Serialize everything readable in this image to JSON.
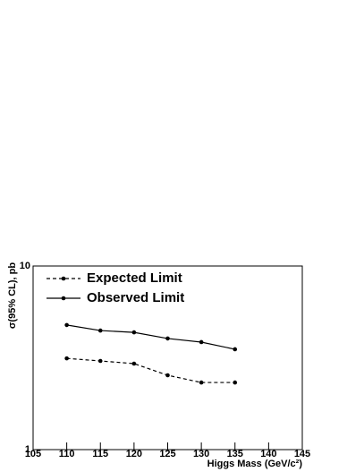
{
  "chart_data": {
    "type": "line",
    "xlabel": "Higgs Mass (GeV/c²)",
    "ylabel": "σ(95% CL), pb",
    "x": [
      110,
      115,
      120,
      125,
      130,
      135
    ],
    "series": [
      {
        "name": "Expected Limit",
        "color": "#000000",
        "linestyle": "dashed",
        "values": [
          3.14,
          3.04,
          2.94,
          2.54,
          2.32,
          2.32
        ]
      },
      {
        "name": "Observed Limit",
        "color": "#000000",
        "linestyle": "solid",
        "values": [
          4.77,
          4.45,
          4.35,
          4.03,
          3.85,
          3.52
        ]
      }
    ],
    "xlim": [
      105,
      145
    ],
    "xticks": [
      105,
      110,
      115,
      120,
      125,
      130,
      135,
      140,
      145
    ],
    "ylim": [
      1,
      10
    ],
    "yticks": [
      1,
      10
    ],
    "ylog": true,
    "legend": "upper left"
  }
}
